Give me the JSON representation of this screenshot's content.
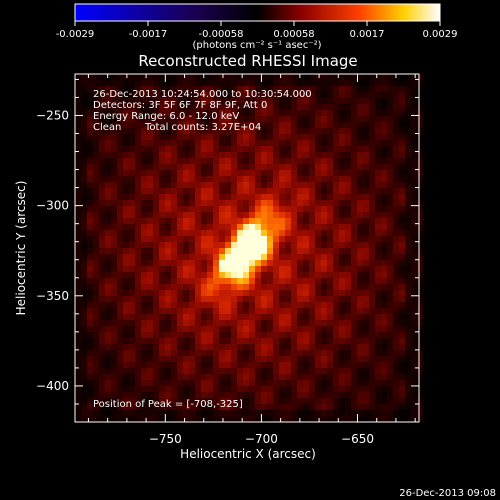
{
  "chart_data": {
    "type": "heatmap",
    "title": "Reconstructed RHESSI Image",
    "xlabel": "Heliocentric X (arcsec)",
    "ylabel": "Heliocentric Y (arcsec)",
    "xlim": [
      -797,
      -618
    ],
    "ylim": [
      -420,
      -227
    ],
    "x_ticks": [
      -750,
      -700,
      -650
    ],
    "y_ticks": [
      -250,
      -300,
      -350,
      -400
    ],
    "colorbar": {
      "label": "(photons cm⁻² s⁻¹ asec⁻²)",
      "range": [
        -0.0029,
        0.0029
      ],
      "ticks": [
        "-0.0029",
        "-0.0017",
        "-0.00058",
        "0.00058",
        "0.0017",
        "0.0029"
      ],
      "colors": [
        "#0000ff",
        "#1a0050",
        "#000000",
        "#8b0000",
        "#ff4000",
        "#ffd000",
        "#ffffff"
      ]
    },
    "annotations": {
      "time": "26-Dec-2013 10:24:54.000 to 10:30:54.000",
      "detectors": "Detectors: 3F 5F 6F 7F 8F 9F, Att 0",
      "energy": "Energy Range: 6.0 - 12.0 keV",
      "algorithm": "Clean",
      "total_counts": "Total counts: 3.27E+04",
      "peak": "Position of Peak = [-708,-325]"
    },
    "peak": {
      "x": -708,
      "y": -325
    },
    "footer": "26-Dec-2013 09:08"
  }
}
